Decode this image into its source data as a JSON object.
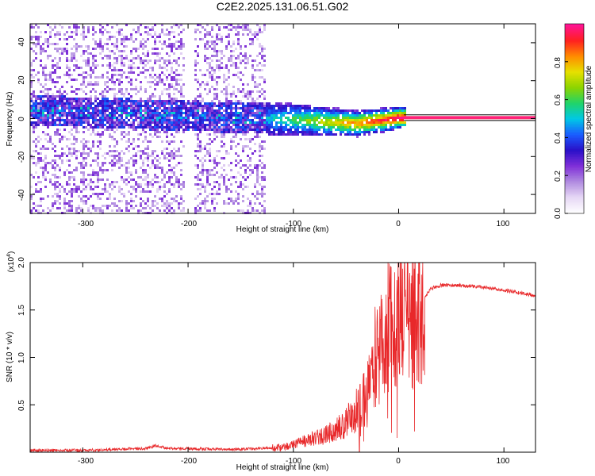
{
  "chart_data": [
    {
      "type": "heatmap",
      "title": "C2E2.2025.131.06.51.G02",
      "xlabel": "Height of straight line (km)",
      "ylabel": "Frequency (Hz)",
      "xlim": [
        -350,
        130
      ],
      "ylim": [
        -50,
        50
      ],
      "x_ticks": [
        "-300",
        "-200",
        "-100",
        "0",
        "100"
      ],
      "y_ticks": [
        "-40",
        "-20",
        "0",
        "20",
        "40"
      ],
      "colorbar": {
        "label": "Normalized spectral amplitude",
        "range": [
          0,
          1
        ],
        "ticks": [
          "0.0",
          "0.2",
          "0.4",
          "0.6",
          "0.8"
        ],
        "colormap": [
          "#ffffff",
          "#e6d7f5",
          "#b08be0",
          "#7f2fd8",
          "#2a10c8",
          "#1a5cff",
          "#00c8e6",
          "#20d46a",
          "#8cd400",
          "#e6e000",
          "#ff8c00",
          "#ff2020",
          "#ff1493"
        ]
      },
      "features": {
        "broadband_noise_x_range": [
          -350,
          -128
        ],
        "noise_gap_x_range": [
          -205,
          -195
        ],
        "central_band_freq_hz": [
          5,
          0,
          -2,
          1
        ],
        "central_band_x_anchors": [
          -350,
          -100,
          -40,
          0
        ],
        "steady_tone_x_range": [
          5,
          130
        ],
        "steady_tone_freq_hz": 0.5,
        "tracking_lines_freq_hz": [
          -1,
          2
        ]
      }
    },
    {
      "type": "line",
      "title": "",
      "xlabel": "Height of straight line (km)",
      "ylabel": "SNR (10 * v/v)",
      "y_multiplier": "(x10",
      "y_multiplier_exp": "4",
      "y_multiplier_close": ")",
      "xlim": [
        -350,
        130
      ],
      "ylim": [
        0,
        2.0
      ],
      "x_ticks": [
        "-300",
        "-200",
        "-100",
        "0",
        "100"
      ],
      "y_ticks": [
        "0.5",
        "1.0",
        "1.5",
        "2.0"
      ],
      "series": [
        {
          "color": "#e8282a",
          "x": [
            -350,
            -300,
            -240,
            -230,
            -220,
            -150,
            -110,
            -90,
            -70,
            -50,
            -40,
            -30,
            -25,
            -20,
            -15,
            -10,
            -5,
            0,
            5,
            10,
            15,
            20,
            30,
            40,
            60,
            80,
            100,
            130
          ],
          "y": [
            0.02,
            0.02,
            0.04,
            0.07,
            0.04,
            0.03,
            0.05,
            0.12,
            0.18,
            0.3,
            0.45,
            0.6,
            0.85,
            1.15,
            1.05,
            1.4,
            1.2,
            1.5,
            1.7,
            1.3,
            1.45,
            1.55,
            1.72,
            1.76,
            1.76,
            1.74,
            1.71,
            1.65
          ]
        }
      ]
    }
  ]
}
